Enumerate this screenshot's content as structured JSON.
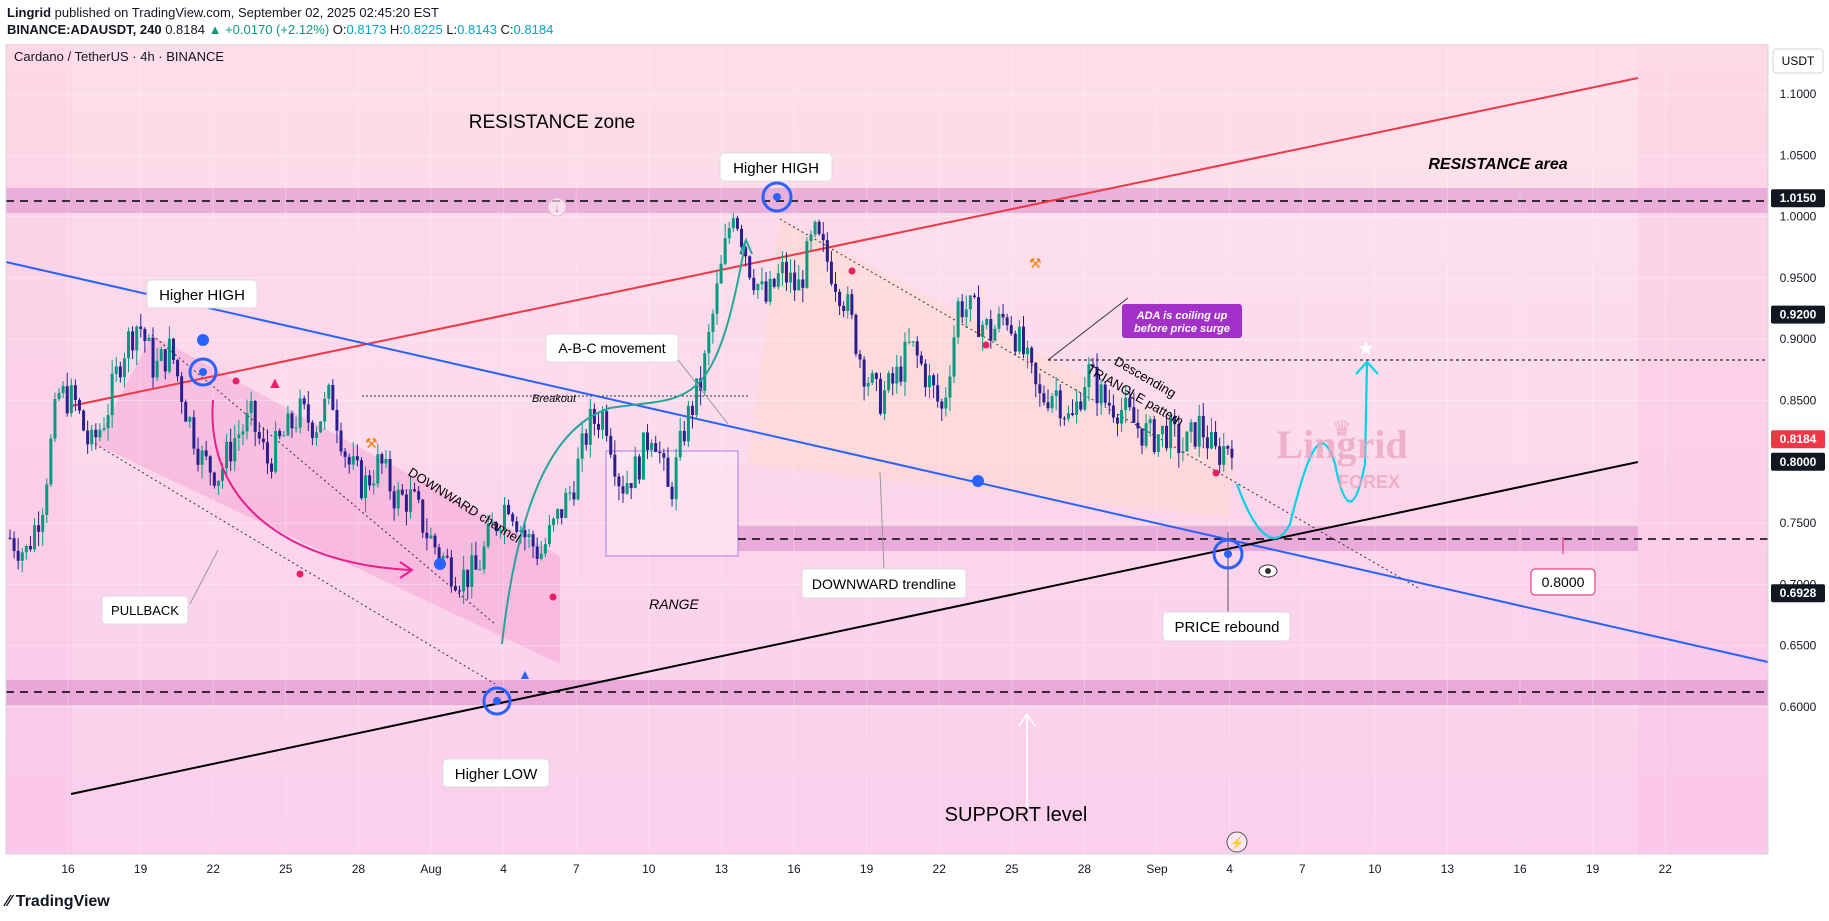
{
  "header": {
    "publisher": "Lingrid",
    "published_text": "published on TradingView.com, September 02, 2025 02:45:20 EST",
    "symbol": "BINANCE:ADAUSDT, 240",
    "last": "0.8184",
    "change": "+0.0170 (+2.12%)",
    "o_label": "O:",
    "o": "0.8173",
    "h_label": "H:",
    "h": "0.8225",
    "l_label": "L:",
    "l": "0.8143",
    "c_label": "C:",
    "c": "0.8184"
  },
  "footer": {
    "brand": "TradingView"
  },
  "chart_data": {
    "type": "candlestick",
    "title": "Cardano / TetherUS · 4h · BINANCE",
    "currency": "USDT",
    "ylim": [
      0.57,
      1.14
    ],
    "x_ticks": [
      "16",
      "19",
      "22",
      "25",
      "28",
      "Aug",
      "4",
      "7",
      "10",
      "13",
      "16",
      "19",
      "22",
      "25",
      "28",
      "Sep",
      "4",
      "7",
      "10",
      "13",
      "16",
      "19",
      "22"
    ],
    "y_ticks": [
      "1.1000",
      "1.0500",
      "1.0000",
      "0.9500",
      "0.9000",
      "0.8500",
      "0.7500",
      "0.7000",
      "0.6500",
      "0.6000"
    ],
    "price_tags": [
      {
        "value": "1.0150",
        "style": "dark"
      },
      {
        "value": "0.9200",
        "style": "dark"
      },
      {
        "value": "0.8184",
        "style": "red"
      },
      {
        "value": "0.8000",
        "style": "dark"
      },
      {
        "value": "0.6928",
        "style": "dark"
      }
    ],
    "levels": {
      "resistance": 1.015,
      "target": 0.92,
      "support_mid": 0.8,
      "support": 0.6928
    },
    "candle_path": [
      0.738,
      0.726,
      0.765,
      0.855,
      0.85,
      0.81,
      0.84,
      0.89,
      0.915,
      0.875,
      0.892,
      0.84,
      0.8,
      0.79,
      0.82,
      0.835,
      0.8,
      0.82,
      0.84,
      0.83,
      0.855,
      0.8,
      0.78,
      0.8,
      0.77,
      0.77,
      0.74,
      0.72,
      0.706,
      0.71,
      0.745,
      0.77,
      0.74,
      0.725,
      0.752,
      0.78,
      0.83,
      0.84,
      0.78,
      0.795,
      0.83,
      0.77,
      0.83,
      0.865,
      0.94,
      1.01,
      0.96,
      0.93,
      0.955,
      0.94,
      0.985,
      0.96,
      0.93,
      0.88,
      0.85,
      0.865,
      0.895,
      0.87,
      0.84,
      0.93,
      0.92,
      0.905,
      0.92,
      0.89,
      0.85,
      0.86,
      0.83,
      0.875,
      0.85,
      0.845,
      0.83,
      0.82,
      0.825,
      0.81,
      0.83,
      0.805,
      0.818
    ],
    "annotations": {
      "resistance_zone": "RESISTANCE zone",
      "resistance_area": "RESISTANCE area",
      "higher_high_1": "Higher HIGH",
      "higher_high_2": "Higher HIGH",
      "higher_low": "Higher LOW",
      "abc": "A-B-C movement",
      "pullback": "PULLBACK",
      "downward_channel": "DOWNWARD channel",
      "breakout": "Breakout",
      "range": "RANGE",
      "downward_trendline": "DOWNWARD trendline",
      "descending_1": "Descending",
      "descending_2": "TRIANGLE pattern",
      "ada_note_1": "ADA is coiling up",
      "ada_note_2": "before price surge",
      "price_rebound": "PRICE rebound",
      "support_level": "SUPPORT level",
      "level_label": "0.8000",
      "watermark_1": "Lingrid",
      "watermark_2": "FOREX"
    },
    "colors": {
      "up": "#089981",
      "down": "#2a1f8f",
      "resistance_line": "#f23645",
      "trend_line": "#2962ff",
      "support_line": "#000000",
      "zone": "#e57ad2",
      "projection": "#00d4e6"
    }
  }
}
